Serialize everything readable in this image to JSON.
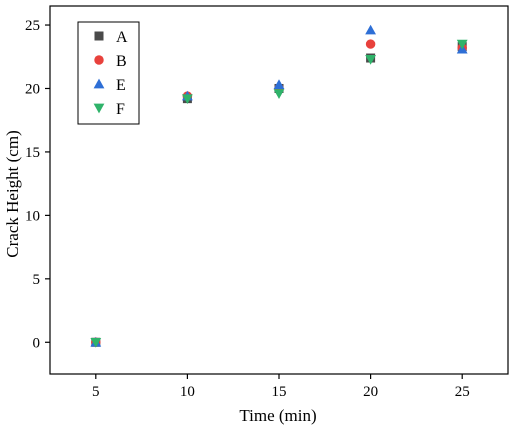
{
  "chart_data": {
    "type": "scatter",
    "xlabel": "Time (min)",
    "ylabel": "Crack Height (cm)",
    "xlim": [
      2.5,
      27.5
    ],
    "ylim": [
      -2.5,
      26.5
    ],
    "x_ticks": [
      5,
      10,
      15,
      20,
      25
    ],
    "y_ticks": [
      0,
      5,
      10,
      15,
      20,
      25
    ],
    "grid": false,
    "legend_position": "top-left",
    "series": [
      {
        "name": "A",
        "marker": "square",
        "color": "#4a4a4a",
        "x": [
          5,
          10,
          15,
          20,
          25
        ],
        "y": [
          0,
          19.2,
          20.0,
          22.4,
          23.3
        ]
      },
      {
        "name": "B",
        "marker": "circle",
        "color": "#e8413c",
        "x": [
          5,
          10,
          15,
          20,
          25
        ],
        "y": [
          0,
          19.4,
          20.0,
          23.5,
          23.2
        ]
      },
      {
        "name": "E",
        "marker": "triangle-up",
        "color": "#2e6fd6",
        "x": [
          5,
          10,
          15,
          20,
          25
        ],
        "y": [
          0,
          19.4,
          20.3,
          24.6,
          23.1
        ]
      },
      {
        "name": "F",
        "marker": "triangle-down",
        "color": "#2fb36a",
        "x": [
          5,
          10,
          15,
          20,
          25
        ],
        "y": [
          0,
          19.2,
          19.6,
          22.3,
          23.5
        ]
      }
    ]
  }
}
